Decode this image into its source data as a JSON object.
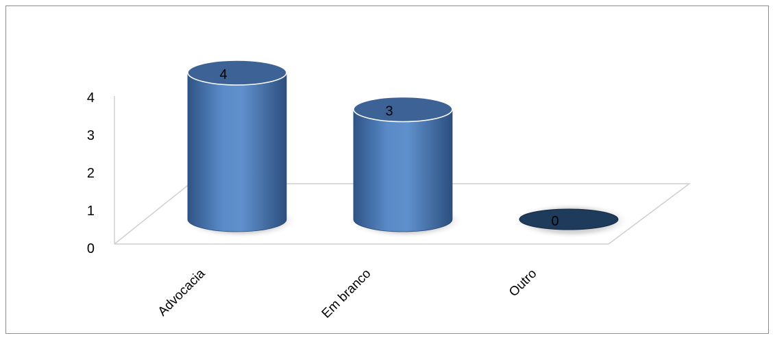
{
  "chart_data": {
    "type": "bar",
    "style": "3d-cylinder",
    "categories": [
      "Advocacia",
      "Em branco",
      "Outro"
    ],
    "values": [
      4,
      3,
      0
    ],
    "data_labels": [
      "4",
      "3",
      "0"
    ],
    "ylim": [
      0,
      4
    ],
    "yticks": [
      "0",
      "1",
      "2",
      "3",
      "4"
    ],
    "title": "",
    "xlabel": "",
    "ylabel": "",
    "grid": false,
    "legend": "none",
    "colors": {
      "bar_body": "#4f81bd",
      "bar_top": "#3d6396",
      "empty_top": "#1f3b5c",
      "floor_line": "#cfcfcf",
      "border": "#8c8c8c"
    }
  }
}
